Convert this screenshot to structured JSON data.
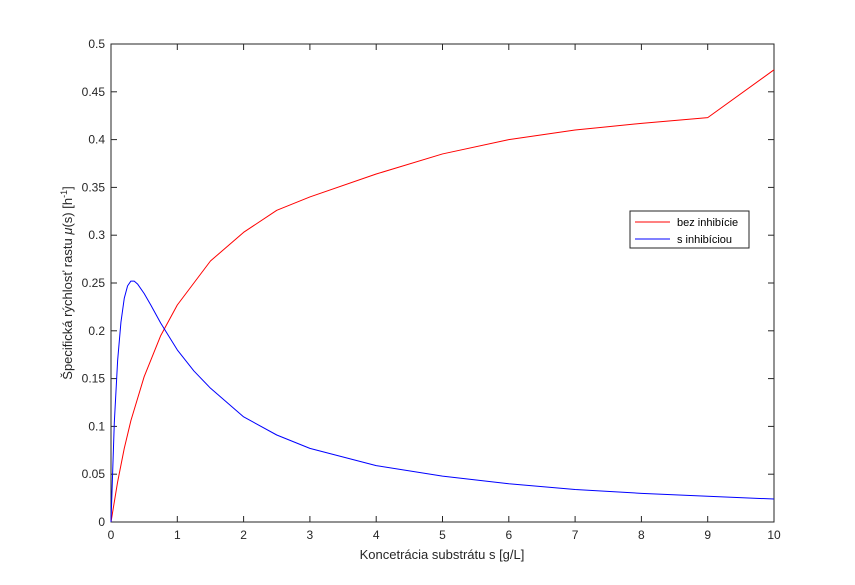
{
  "chart_data": {
    "type": "line",
    "xlabel": "Koncetrácia substrátu s [g/L]",
    "ylabel": {
      "prefix": "Špecifická rýchlosť rastu ",
      "symbol": "μ",
      "middle": "(s) [h",
      "superscript": "-1",
      "suffix": "]"
    },
    "xlim": [
      0,
      10
    ],
    "ylim": [
      0,
      0.5
    ],
    "xticks": [
      0,
      1,
      2,
      3,
      4,
      5,
      6,
      7,
      8,
      9,
      10
    ],
    "xtick_labels": [
      "0",
      "1",
      "2",
      "3",
      "4",
      "5",
      "6",
      "7",
      "8",
      "9",
      "10"
    ],
    "yticks": [
      0,
      0.05,
      0.1,
      0.15,
      0.2,
      0.25,
      0.3,
      0.35,
      0.4,
      0.45,
      0.5
    ],
    "ytick_labels": [
      "0",
      "0.05",
      "0.1",
      "0.15",
      "0.2",
      "0.25",
      "0.3",
      "0.35",
      "0.4",
      "0.45",
      "0.5"
    ],
    "grid": false,
    "legend_position": "right",
    "series": [
      {
        "name": "bez inhibície",
        "color": "#ff0000",
        "x": [
          0,
          0.1,
          0.2,
          0.3,
          0.5,
          0.75,
          1,
          1.5,
          2,
          2.5,
          3,
          4,
          5,
          6,
          7,
          8,
          9,
          10
        ],
        "y": [
          0,
          0.042,
          0.077,
          0.106,
          0.152,
          0.195,
          0.227,
          0.273,
          0.303,
          0.326,
          0.34,
          0.364,
          0.385,
          0.4,
          0.41,
          0.417,
          0.423,
          0.473
        ]
      },
      {
        "name": "s inhibíciou",
        "color": "#0000ff",
        "x": [
          0,
          0.05,
          0.1,
          0.15,
          0.2,
          0.25,
          0.3,
          0.35,
          0.4,
          0.5,
          0.6,
          0.75,
          1,
          1.25,
          1.5,
          2,
          2.5,
          3,
          4,
          5,
          6,
          7,
          8,
          9,
          10
        ],
        "y": [
          0,
          0.104,
          0.169,
          0.209,
          0.234,
          0.247,
          0.252,
          0.252,
          0.249,
          0.239,
          0.227,
          0.208,
          0.18,
          0.158,
          0.14,
          0.11,
          0.091,
          0.077,
          0.059,
          0.048,
          0.04,
          0.034,
          0.03,
          0.027,
          0.024
        ]
      }
    ]
  }
}
